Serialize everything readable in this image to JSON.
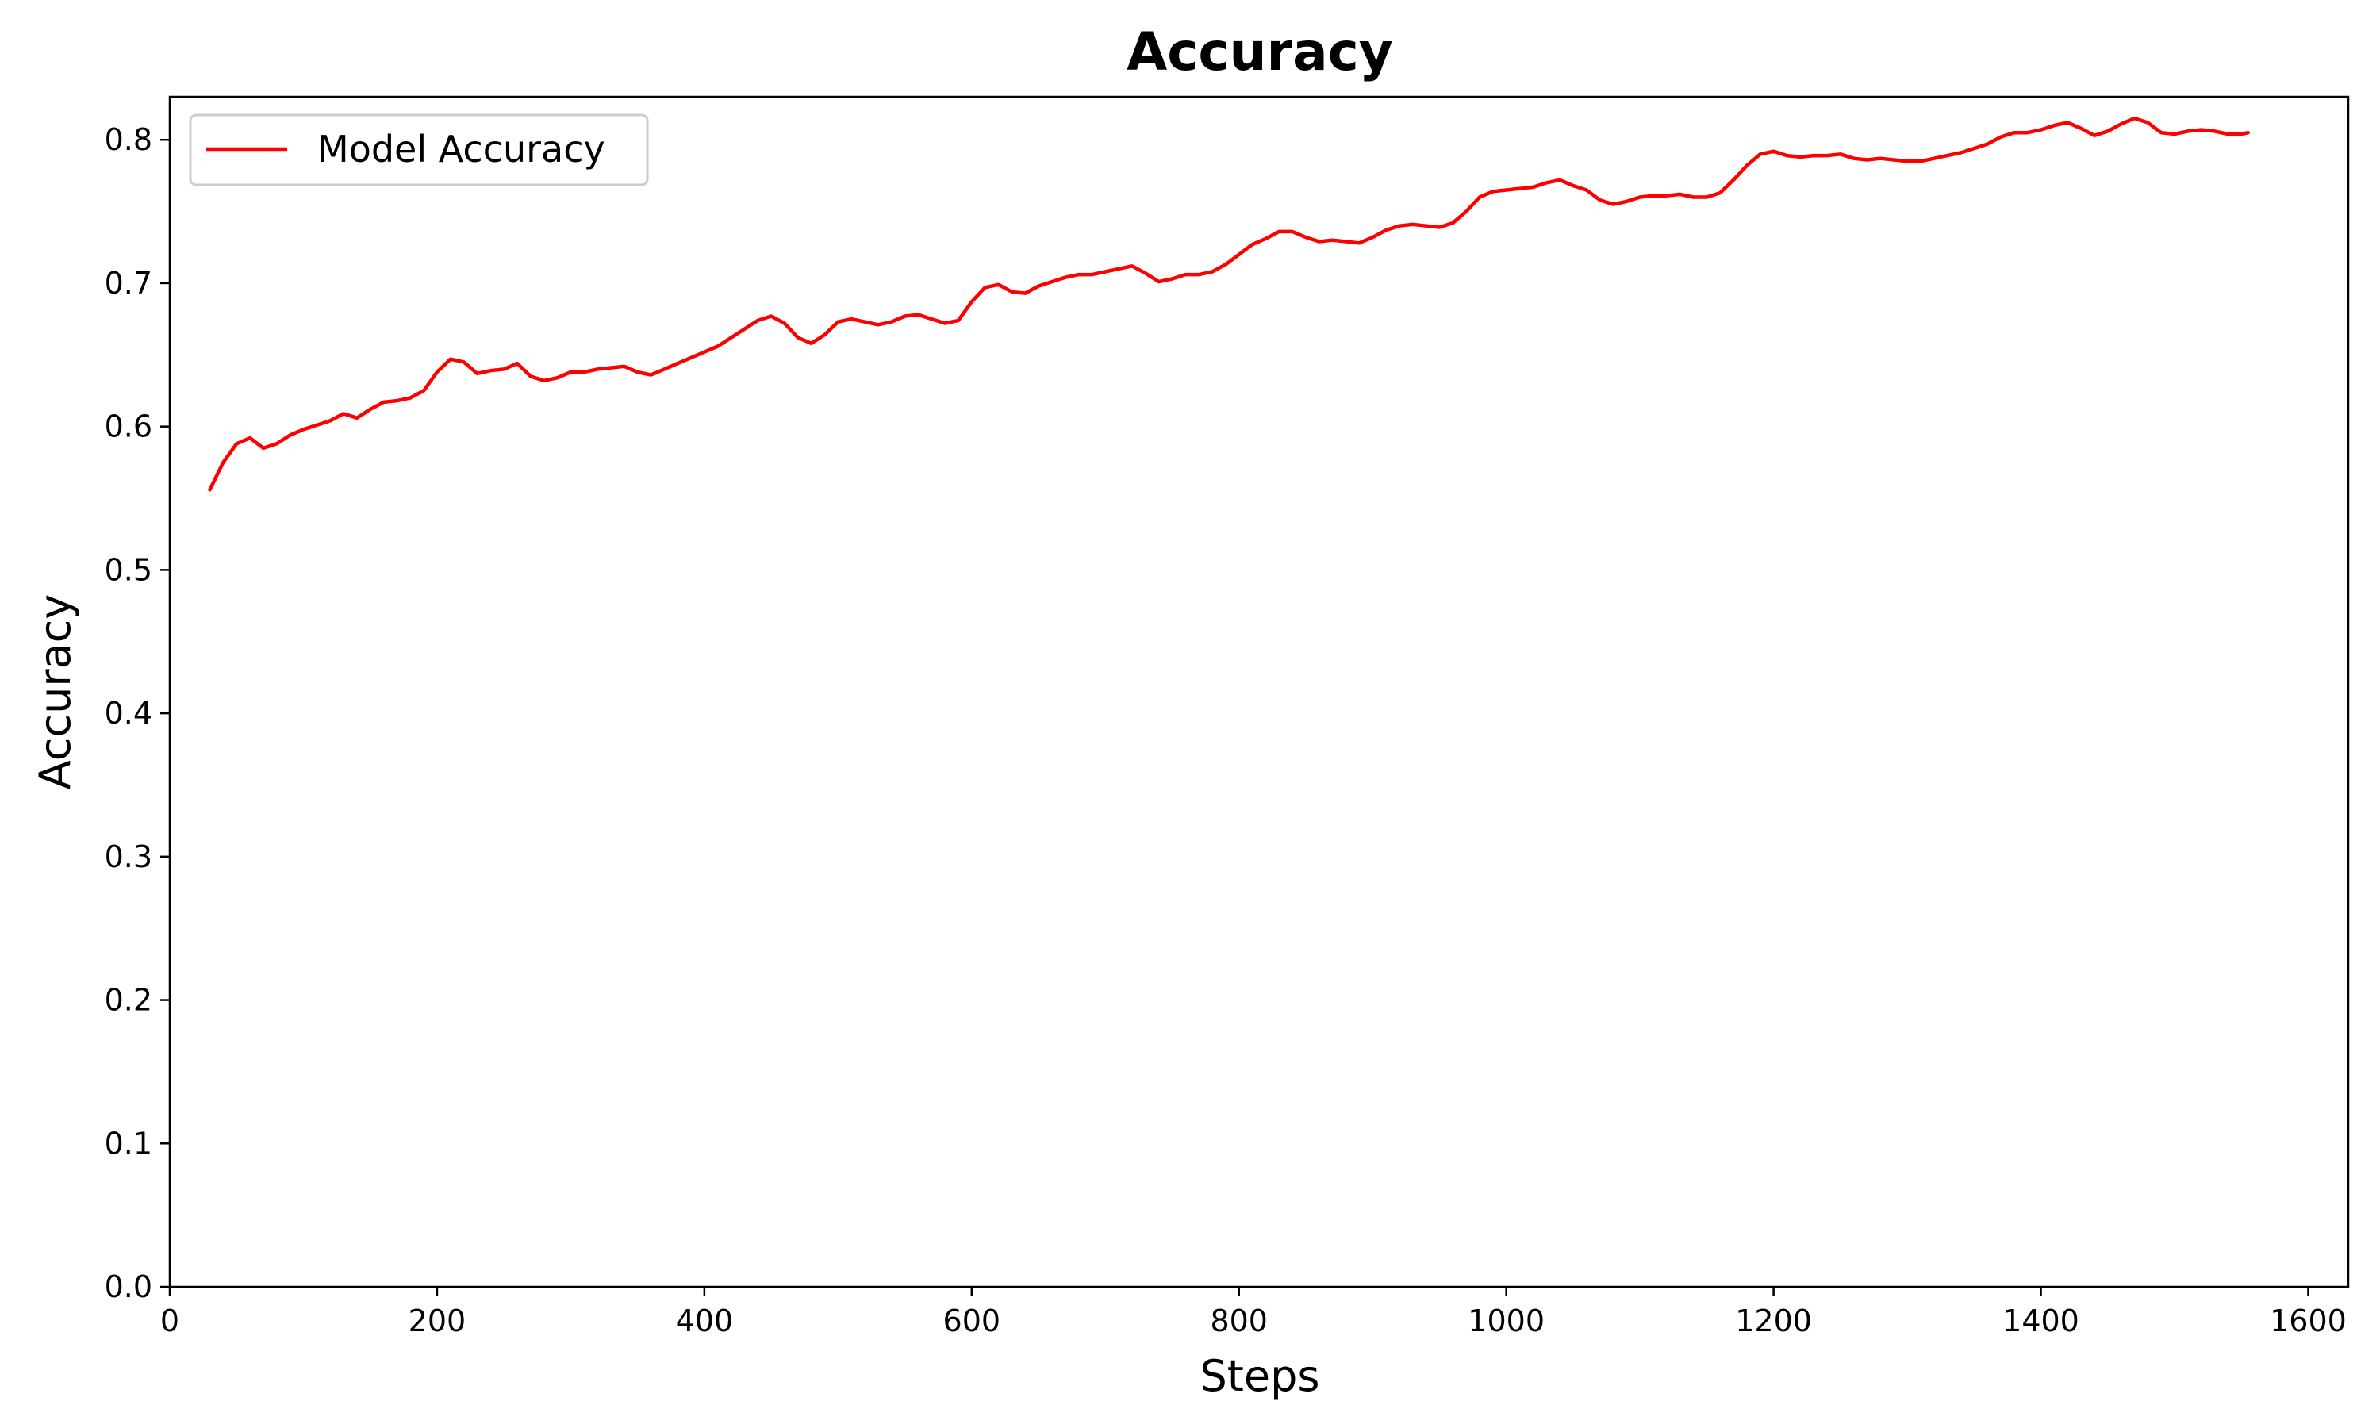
{
  "chart_data": {
    "type": "line",
    "title": "Accuracy",
    "xlabel": "Steps",
    "ylabel": "Accuracy",
    "xlim": [
      0,
      1630
    ],
    "ylim": [
      0.0,
      0.83
    ],
    "xticks": [
      0,
      200,
      400,
      600,
      800,
      1000,
      1200,
      1400,
      1600
    ],
    "xtick_labels": [
      "0",
      "200",
      "400",
      "600",
      "800",
      "1000",
      "1200",
      "1400",
      "1600"
    ],
    "yticks": [
      0.0,
      0.1,
      0.2,
      0.3,
      0.4,
      0.5,
      0.6,
      0.7,
      0.8
    ],
    "ytick_labels": [
      "0.0",
      "0.1",
      "0.2",
      "0.3",
      "0.4",
      "0.5",
      "0.6",
      "0.7",
      "0.8"
    ],
    "grid": false,
    "legend": {
      "position": "upper-left"
    },
    "series": [
      {
        "name": "Model Accuracy",
        "color": "#ff0000",
        "x": [
          30,
          40,
          50,
          60,
          70,
          80,
          90,
          100,
          110,
          120,
          130,
          140,
          150,
          160,
          170,
          180,
          190,
          200,
          210,
          220,
          230,
          240,
          250,
          260,
          270,
          280,
          290,
          300,
          310,
          320,
          330,
          340,
          350,
          360,
          370,
          380,
          390,
          400,
          410,
          420,
          430,
          440,
          450,
          460,
          470,
          480,
          490,
          500,
          510,
          520,
          530,
          540,
          550,
          560,
          570,
          580,
          590,
          600,
          610,
          620,
          630,
          640,
          650,
          660,
          670,
          680,
          690,
          700,
          710,
          720,
          730,
          740,
          750,
          760,
          770,
          780,
          790,
          800,
          810,
          820,
          830,
          840,
          850,
          860,
          870,
          880,
          890,
          900,
          910,
          920,
          930,
          940,
          950,
          960,
          970,
          980,
          990,
          1000,
          1010,
          1020,
          1030,
          1040,
          1050,
          1060,
          1070,
          1080,
          1090,
          1100,
          1110,
          1120,
          1130,
          1140,
          1150,
          1160,
          1170,
          1180,
          1190,
          1200,
          1210,
          1220,
          1230,
          1240,
          1250,
          1260,
          1270,
          1280,
          1290,
          1300,
          1310,
          1320,
          1330,
          1340,
          1350,
          1360,
          1370,
          1380,
          1390,
          1400,
          1410,
          1420,
          1430,
          1440,
          1450,
          1460,
          1470,
          1480,
          1490,
          1500,
          1510,
          1520,
          1530,
          1540,
          1550,
          1555
        ],
        "y": [
          0.556,
          0.575,
          0.588,
          0.592,
          0.585,
          0.588,
          0.594,
          0.598,
          0.601,
          0.604,
          0.609,
          0.606,
          0.612,
          0.617,
          0.618,
          0.62,
          0.625,
          0.638,
          0.647,
          0.645,
          0.637,
          0.639,
          0.64,
          0.644,
          0.635,
          0.632,
          0.634,
          0.638,
          0.638,
          0.64,
          0.641,
          0.642,
          0.638,
          0.636,
          0.64,
          0.644,
          0.648,
          0.652,
          0.656,
          0.662,
          0.668,
          0.674,
          0.677,
          0.672,
          0.662,
          0.658,
          0.664,
          0.673,
          0.675,
          0.673,
          0.671,
          0.673,
          0.677,
          0.678,
          0.675,
          0.672,
          0.674,
          0.687,
          0.697,
          0.699,
          0.694,
          0.693,
          0.698,
          0.701,
          0.704,
          0.706,
          0.706,
          0.708,
          0.71,
          0.712,
          0.707,
          0.701,
          0.703,
          0.706,
          0.706,
          0.708,
          0.713,
          0.72,
          0.727,
          0.731,
          0.736,
          0.736,
          0.732,
          0.729,
          0.73,
          0.729,
          0.728,
          0.732,
          0.737,
          0.74,
          0.741,
          0.74,
          0.739,
          0.742,
          0.75,
          0.76,
          0.764,
          0.765,
          0.766,
          0.767,
          0.77,
          0.772,
          0.768,
          0.765,
          0.758,
          0.755,
          0.757,
          0.76,
          0.761,
          0.761,
          0.762,
          0.76,
          0.76,
          0.763,
          0.772,
          0.782,
          0.79,
          0.792,
          0.789,
          0.788,
          0.789,
          0.789,
          0.79,
          0.787,
          0.786,
          0.787,
          0.786,
          0.785,
          0.785,
          0.787,
          0.789,
          0.791,
          0.794,
          0.797,
          0.802,
          0.805,
          0.805,
          0.807,
          0.81,
          0.812,
          0.808,
          0.803,
          0.806,
          0.811,
          0.815,
          0.812,
          0.805,
          0.804,
          0.806,
          0.807,
          0.806,
          0.804,
          0.804,
          0.805
        ]
      }
    ]
  }
}
